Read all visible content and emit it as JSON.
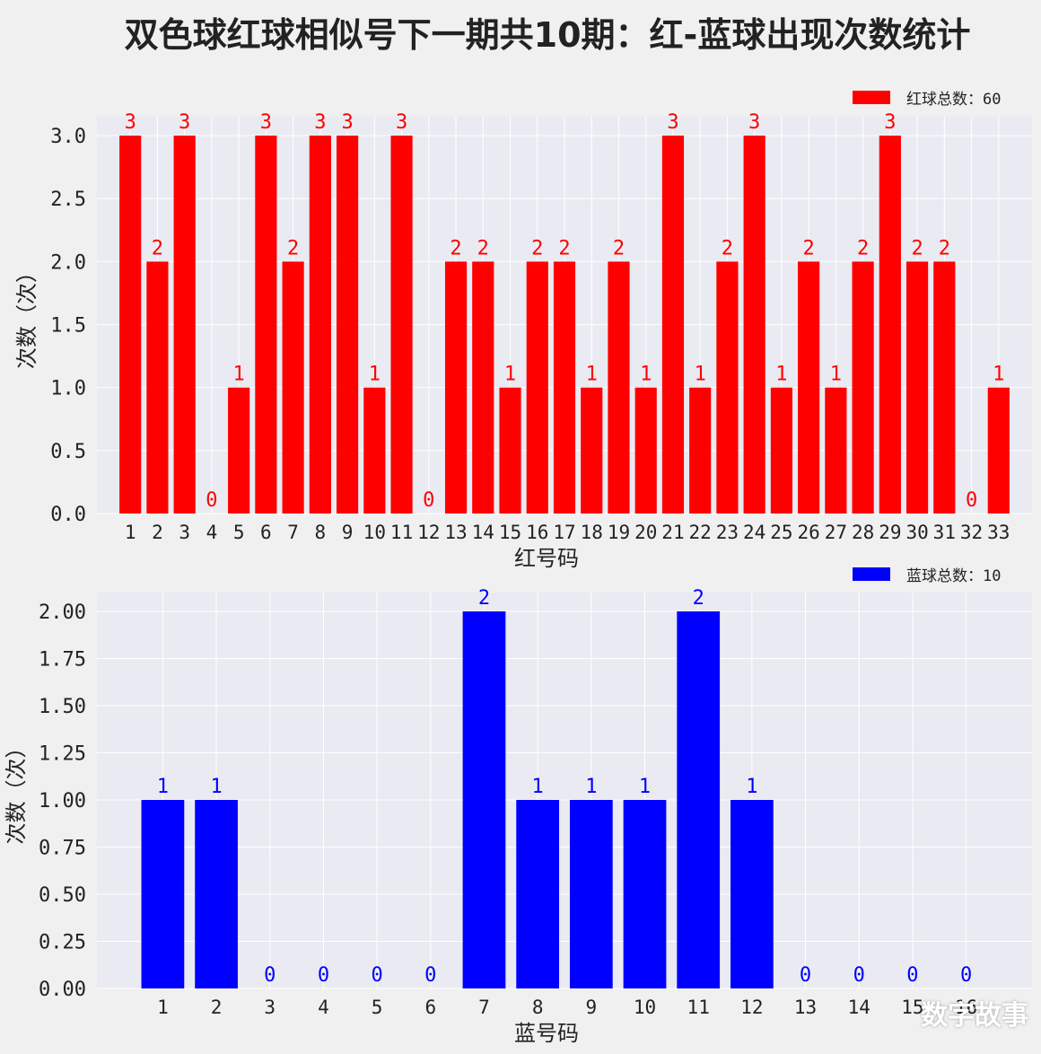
{
  "title": "双色球红球相似号下一期共10期：红-蓝球出现次数统计",
  "watermark": "数字故事",
  "colors": {
    "red": "#ff0000",
    "blue": "#0000ff",
    "plot_bg": "#eaeaf2",
    "grid": "#ffffff"
  },
  "chart_data": [
    {
      "type": "bar",
      "xlabel": "红号码",
      "ylabel": "次数（次）",
      "legend": "红球总数：60",
      "legend_position": "top-right",
      "color": "#ff0000",
      "ylim": [
        0,
        3.0
      ],
      "yticks": [
        "0.0",
        "0.5",
        "1.0",
        "1.5",
        "2.0",
        "2.5",
        "3.0"
      ],
      "grid": true,
      "categories": [
        "1",
        "2",
        "3",
        "4",
        "5",
        "6",
        "7",
        "8",
        "9",
        "10",
        "11",
        "12",
        "13",
        "14",
        "15",
        "16",
        "17",
        "18",
        "19",
        "20",
        "21",
        "22",
        "23",
        "24",
        "25",
        "26",
        "27",
        "28",
        "29",
        "30",
        "31",
        "32",
        "33"
      ],
      "values": [
        3,
        2,
        3,
        0,
        1,
        3,
        2,
        3,
        3,
        1,
        3,
        0,
        2,
        2,
        1,
        2,
        2,
        1,
        2,
        1,
        3,
        1,
        2,
        3,
        1,
        2,
        1,
        2,
        3,
        2,
        2,
        0,
        1
      ]
    },
    {
      "type": "bar",
      "xlabel": "蓝号码",
      "ylabel": "次数（次）",
      "legend": "蓝球总数：10",
      "legend_position": "top-right",
      "color": "#0000ff",
      "ylim": [
        0,
        2.0
      ],
      "yticks": [
        "0.00",
        "0.25",
        "0.50",
        "0.75",
        "1.00",
        "1.25",
        "1.50",
        "1.75",
        "2.00"
      ],
      "grid": true,
      "categories": [
        "1",
        "2",
        "3",
        "4",
        "5",
        "6",
        "7",
        "8",
        "9",
        "10",
        "11",
        "12",
        "13",
        "14",
        "15",
        "16"
      ],
      "values": [
        1,
        1,
        0,
        0,
        0,
        0,
        2,
        1,
        1,
        1,
        2,
        1,
        0,
        0,
        0,
        0
      ]
    }
  ]
}
